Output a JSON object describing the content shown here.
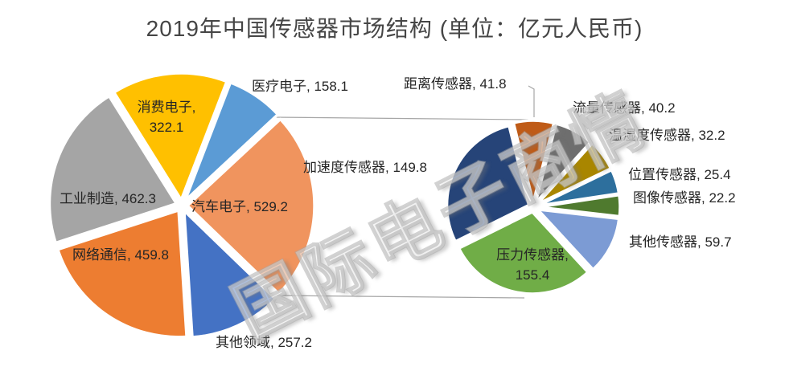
{
  "watermark": "国际电子商情",
  "chart_data": {
    "type": "pie",
    "subtype": "pie-of-pie",
    "title": "2019年中国传感器市场结构 (单位：亿元人民币)",
    "unit": "亿元人民币",
    "legend_position": "none",
    "label_format": "name, value",
    "main_pie": {
      "slices": [
        {
          "label": "医疗电子",
          "value": 158.1,
          "color": "#5B9BD5"
        },
        {
          "label": "汽车电子",
          "value": 529.2,
          "color": "#F0945E"
        },
        {
          "label": "其他领域",
          "value": 257.2,
          "color": "#4472C4"
        },
        {
          "label": "网络通信",
          "value": 459.8,
          "color": "#ED7D31"
        },
        {
          "label": "工业制造",
          "value": 462.3,
          "color": "#A5A5A5"
        },
        {
          "label": "消费电子",
          "value": 322.1,
          "color": "#FFC000"
        }
      ]
    },
    "secondary_pie": {
      "slices": [
        {
          "label": "距离传感器",
          "value": 41.8,
          "color": "#BF5B17"
        },
        {
          "label": "流量传感器",
          "value": 40.2,
          "color": "#6E6E6E"
        },
        {
          "label": "温湿度传感器",
          "value": 32.2,
          "color": "#A98600"
        },
        {
          "label": "位置传感器",
          "value": 25.4,
          "color": "#2D6F9D"
        },
        {
          "label": "图像传感器",
          "value": 22.2,
          "color": "#4F7A2E"
        },
        {
          "label": "其他传感器",
          "value": 59.7,
          "color": "#7C9BD4"
        },
        {
          "label": "压力传感器",
          "value": 155.4,
          "color": "#70AD47"
        },
        {
          "label": "加速度传感器",
          "value": 149.8,
          "color": "#264478"
        }
      ]
    }
  }
}
